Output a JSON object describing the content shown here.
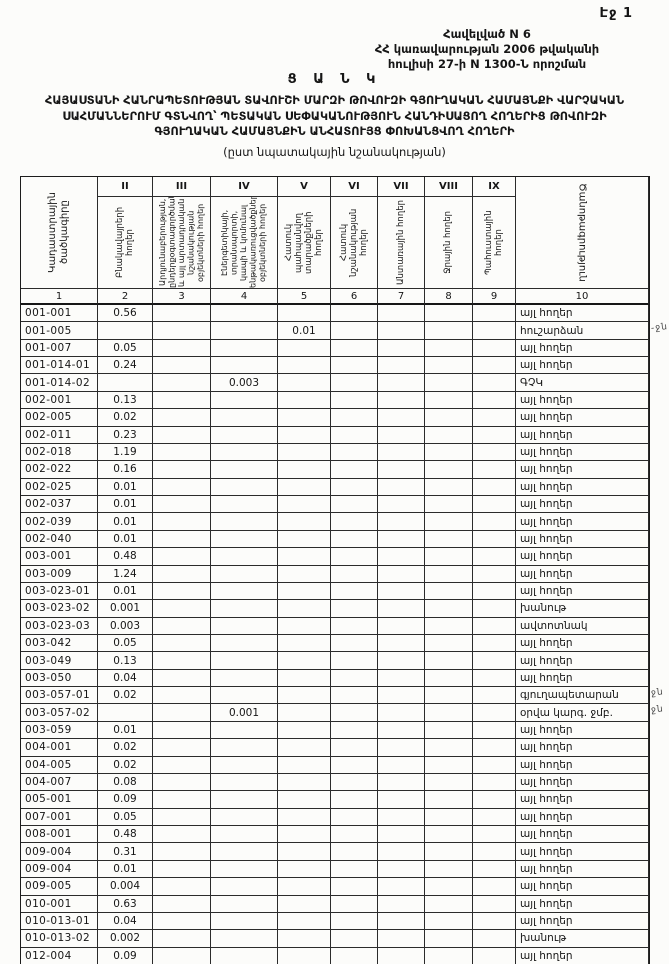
{
  "page": {
    "number_label": "Էջ 1"
  },
  "header": {
    "lines": [
      "Հավելված N 6",
      "ՀՀ կառավարության 2006 թվականի",
      "հուլիսի 27-ի N 1300-Ն որոշման"
    ]
  },
  "title": {
    "main": "Ց Ա Ն Կ",
    "line1": "ՀԱՅԱՍՏԱՆԻ ՀԱՆՐԱՊԵՏՈՒԹՅԱՆ ՏԱՎՈՒՇԻ ՄԱՐԶԻ ԹՈՎՈՒԶԻ ԳՅՈՒՂԱԿԱՆ ՀԱՄԱՅՆՔԻ ՎԱՐՉԱԿԱՆ",
    "line2": "ՍԱՀՄԱՆՆԵՐՈՒՄ ԳՏՆՎՈՂ՝ ՊԵՏԱԿԱՆ ՍԵՓԱԿԱՆՈՒԹՅՈՒՆ ՀԱՆԴԻՍԱՑՈՂ ՀՈՂԵՐԻՑ ԹՈՎՈՒԶԻ",
    "line3": "ԳՅՈՒՂԱԿԱՆ ՀԱՄԱՅՆՔԻՆ ԱՆՀԱՏՈՒՅՑ ՓՈԽԱՆՑՎՈՂ ՀՈՂԵՐԻ",
    "subtitle": "(ըստ նպատակային նշանակության)"
  },
  "table": {
    "col1_header": "Կադաստրային ծածկագիրը",
    "col10_header": "Ծանոթագրություն",
    "roman_numerals": [
      "II",
      "III",
      "IV",
      "V",
      "VI",
      "VII",
      "VIII",
      "IX"
    ],
    "category_headers": [
      "Բնակավայրերի հողեր",
      "Արդյունաբերության, ընդերքօգտագործման և այլ արտադրական նշանակության օբյեկտների հողեր",
      "Էներգետիկայի, տրանսպորտի, կապի և կոմունալ ենթակառուցվածքների օբյեկտների հողեր",
      "Հատուկ պահպանվող տարածքների հողեր",
      "Հատուկ նշանակության հողեր",
      "Անտառային հողեր",
      "Ջրային հողեր",
      "Պահուստային հողեր"
    ],
    "digit_row": [
      "1",
      "2",
      "3",
      "4",
      "5",
      "6",
      "7",
      "8",
      "9",
      "10"
    ],
    "rows": [
      [
        "001-001",
        "0.56",
        "",
        "",
        "",
        "",
        "",
        "",
        "",
        "այլ հողեր"
      ],
      [
        "001-005",
        "",
        "",
        "",
        "0.01",
        "",
        "",
        "",
        "",
        "հուշարձան"
      ],
      [
        "001-007",
        "0.05",
        "",
        "",
        "",
        "",
        "",
        "",
        "",
        "այլ հողեր"
      ],
      [
        "001-014-01",
        "0.24",
        "",
        "",
        "",
        "",
        "",
        "",
        "",
        "այլ հողեր"
      ],
      [
        "001-014-02",
        "",
        "",
        "0.003",
        "",
        "",
        "",
        "",
        "",
        "ԳՉԿ"
      ],
      [
        "002-001",
        "0.13",
        "",
        "",
        "",
        "",
        "",
        "",
        "",
        "այլ հողեր"
      ],
      [
        "002-005",
        "0.02",
        "",
        "",
        "",
        "",
        "",
        "",
        "",
        "այլ հողեր"
      ],
      [
        "002-011",
        "0.23",
        "",
        "",
        "",
        "",
        "",
        "",
        "",
        "այլ հողեր"
      ],
      [
        "002-018",
        "1.19",
        "",
        "",
        "",
        "",
        "",
        "",
        "",
        "այլ հողեր"
      ],
      [
        "002-022",
        "0.16",
        "",
        "",
        "",
        "",
        "",
        "",
        "",
        "այլ հողեր"
      ],
      [
        "002-025",
        "0.01",
        "",
        "",
        "",
        "",
        "",
        "",
        "",
        "այլ հողեր"
      ],
      [
        "002-037",
        "0.01",
        "",
        "",
        "",
        "",
        "",
        "",
        "",
        "այլ հողեր"
      ],
      [
        "002-039",
        "0.01",
        "",
        "",
        "",
        "",
        "",
        "",
        "",
        "այլ հողեր"
      ],
      [
        "002-040",
        "0.01",
        "",
        "",
        "",
        "",
        "",
        "",
        "",
        "այլ հողեր"
      ],
      [
        "003-001",
        "0.48",
        "",
        "",
        "",
        "",
        "",
        "",
        "",
        "այլ հողեր"
      ],
      [
        "003-009",
        "1.24",
        "",
        "",
        "",
        "",
        "",
        "",
        "",
        "այլ հողեր"
      ],
      [
        "003-023-01",
        "0.01",
        "",
        "",
        "",
        "",
        "",
        "",
        "",
        "այլ հողեր"
      ],
      [
        "003-023-02",
        "0.001",
        "",
        "",
        "",
        "",
        "",
        "",
        "",
        "խանութ"
      ],
      [
        "003-023-03",
        "0.003",
        "",
        "",
        "",
        "",
        "",
        "",
        "",
        "ավտոտնակ"
      ],
      [
        "003-042",
        "0.05",
        "",
        "",
        "",
        "",
        "",
        "",
        "",
        "այլ հողեր"
      ],
      [
        "003-049",
        "0.13",
        "",
        "",
        "",
        "",
        "",
        "",
        "",
        "այլ հողեր"
      ],
      [
        "003-050",
        "0.04",
        "",
        "",
        "",
        "",
        "",
        "",
        "",
        "այլ հողեր"
      ],
      [
        "003-057-01",
        "0.02",
        "",
        "",
        "",
        "",
        "",
        "",
        "",
        "գյուղապետարան"
      ],
      [
        "003-057-02",
        "",
        "",
        "0.001",
        "",
        "",
        "",
        "",
        "",
        "օրվա կարգ. ջմբ."
      ],
      [
        "003-059",
        "0.01",
        "",
        "",
        "",
        "",
        "",
        "",
        "",
        "այլ հողեր"
      ],
      [
        "004-001",
        "0.02",
        "",
        "",
        "",
        "",
        "",
        "",
        "",
        "այլ հողեր"
      ],
      [
        "004-005",
        "0.02",
        "",
        "",
        "",
        "",
        "",
        "",
        "",
        "այլ հողեր"
      ],
      [
        "004-007",
        "0.08",
        "",
        "",
        "",
        "",
        "",
        "",
        "",
        "այլ հողեր"
      ],
      [
        "005-001",
        "0.09",
        "",
        "",
        "",
        "",
        "",
        "",
        "",
        "այլ հողեր"
      ],
      [
        "007-001",
        "0.05",
        "",
        "",
        "",
        "",
        "",
        "",
        "",
        "այլ հողեր"
      ],
      [
        "008-001",
        "0.48",
        "",
        "",
        "",
        "",
        "",
        "",
        "",
        "այլ հողեր"
      ],
      [
        "009-004",
        "0.31",
        "",
        "",
        "",
        "",
        "",
        "",
        "",
        "այլ հողեր"
      ],
      [
        "009-004",
        "0.01",
        "",
        "",
        "",
        "",
        "",
        "",
        "",
        "այլ հողեր"
      ],
      [
        "009-005",
        "0.004",
        "",
        "",
        "",
        "",
        "",
        "",
        "",
        "այլ հողեր"
      ],
      [
        "010-001",
        "0.63",
        "",
        "",
        "",
        "",
        "",
        "",
        "",
        "այլ հողեր"
      ],
      [
        "010-013-01",
        "0.04",
        "",
        "",
        "",
        "",
        "",
        "",
        "",
        "այլ հողեր"
      ],
      [
        "010-013-02",
        "0.002",
        "",
        "",
        "",
        "",
        "",
        "",
        "",
        "խանութ"
      ],
      [
        "012-004",
        "0.09",
        "",
        "",
        "",
        "",
        "",
        "",
        "",
        "այլ հողեր"
      ]
    ]
  },
  "margin_marks": [
    {
      "row_index": 1,
      "text": "-ջն"
    },
    {
      "row_index": 22,
      "text": "ջն"
    },
    {
      "row_index": 23,
      "text": "ջն"
    }
  ]
}
